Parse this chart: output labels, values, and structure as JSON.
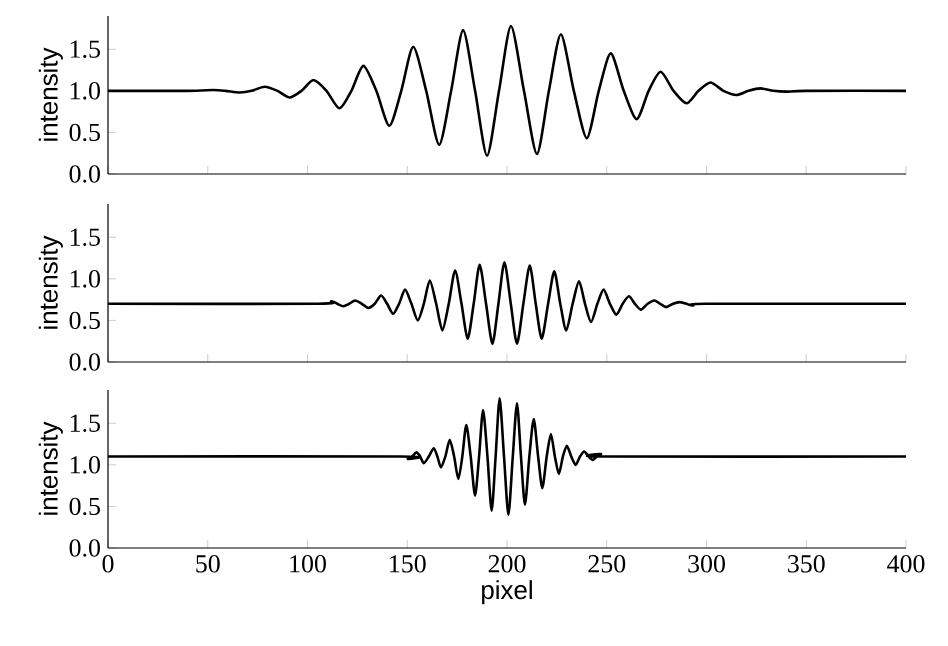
{
  "chart_data": [
    {
      "type": "line",
      "ylabel": "intensity",
      "xlim": [
        0,
        400
      ],
      "ylim": [
        0,
        1.9
      ],
      "tick_labels": "y",
      "xticks": [
        0,
        50,
        100,
        150,
        200,
        250,
        300,
        350,
        400
      ],
      "yticks": [
        {
          "value": 0,
          "label": "0.0"
        },
        {
          "value": 0.5,
          "label": "0.5"
        },
        {
          "value": 1,
          "label": "1.0"
        },
        {
          "value": 1.5,
          "label": "1.5"
        }
      ],
      "series": [
        {
          "color": "#000000",
          "x": [
            0,
            40,
            52.8,
            59,
            66,
            72,
            78.5,
            85,
            91,
            97,
            103,
            109.5,
            116,
            122,
            128,
            134.5,
            141,
            147,
            153,
            159.5,
            166,
            172,
            178,
            184,
            190,
            196,
            202,
            208.5,
            215,
            221,
            227,
            233.5,
            240,
            246,
            252,
            258.5,
            265,
            271,
            277,
            283.5,
            290,
            296,
            302,
            308.5,
            315,
            321,
            327,
            333.5,
            340,
            350,
            400
          ],
          "values": [
            1.0,
            1.0,
            1.01,
            1.0,
            0.98,
            1.0,
            1.05,
            1.0,
            0.92,
            1.0,
            1.13,
            1.0,
            0.79,
            1.0,
            1.3,
            1.0,
            0.58,
            1.0,
            1.53,
            1.0,
            0.35,
            1.0,
            1.73,
            1.0,
            0.22,
            1.0,
            1.78,
            1.0,
            0.24,
            1.0,
            1.68,
            1.0,
            0.43,
            1.0,
            1.45,
            1.0,
            0.66,
            1.0,
            1.23,
            1.0,
            0.85,
            1.0,
            1.1,
            1.0,
            0.95,
            1.0,
            1.03,
            1.0,
            0.99,
            1.0,
            1.0
          ]
        }
      ]
    },
    {
      "type": "line",
      "ylabel": "intensity",
      "xlim": [
        0,
        400
      ],
      "ylim": [
        0,
        1.9
      ],
      "tick_labels": "y",
      "xticks": [
        0,
        50,
        100,
        150,
        200,
        250,
        300,
        350,
        400
      ],
      "yticks": [
        {
          "value": 0,
          "label": "0.0"
        },
        {
          "value": 0.5,
          "label": "0.5"
        },
        {
          "value": 1,
          "label": "1.0"
        },
        {
          "value": 1.5,
          "label": "1.5"
        }
      ],
      "series": [
        {
          "color": "#000000",
          "x": [
            0,
            105,
            111.9,
            114.9,
            117.9,
            120.9,
            123.9,
            127.2,
            130.5,
            133.7,
            136.9,
            139.9,
            142.9,
            145.9,
            148.9,
            152.1,
            155.3,
            158.3,
            161.3,
            164.5,
            167.6,
            170.8,
            174,
            177.2,
            180.3,
            183.3,
            186.3,
            189.5,
            192.7,
            195.7,
            198.7,
            201.9,
            205,
            208.2,
            211.4,
            214.4,
            217.4,
            220.6,
            223.7,
            226.7,
            229.7,
            232.9,
            236.1,
            239.1,
            242.1,
            245.3,
            248.4,
            251.6,
            254.8,
            258,
            261.1,
            264.1,
            267.1,
            270.5,
            273.8,
            276.8,
            279.8,
            283.2,
            286.5,
            289.9,
            293.2,
            300,
            400
          ],
          "values": [
            0.7,
            0.7,
            0.73,
            0.7,
            0.67,
            0.7,
            0.74,
            0.7,
            0.65,
            0.7,
            0.8,
            0.7,
            0.58,
            0.7,
            0.87,
            0.7,
            0.5,
            0.7,
            0.98,
            0.7,
            0.38,
            0.7,
            1.1,
            0.7,
            0.28,
            0.7,
            1.17,
            0.7,
            0.22,
            0.7,
            1.2,
            0.7,
            0.22,
            0.7,
            1.16,
            0.7,
            0.28,
            0.7,
            1.09,
            0.7,
            0.38,
            0.7,
            0.97,
            0.7,
            0.48,
            0.7,
            0.87,
            0.7,
            0.57,
            0.7,
            0.79,
            0.7,
            0.63,
            0.7,
            0.74,
            0.7,
            0.66,
            0.7,
            0.72,
            0.7,
            0.68,
            0.7,
            0.7
          ]
        }
      ]
    },
    {
      "type": "line",
      "xlabel": "pixel",
      "ylabel": "intensity",
      "xlim": [
        0,
        400
      ],
      "ylim": [
        0,
        1.9
      ],
      "xticks": [
        0,
        50,
        100,
        150,
        200,
        250,
        300,
        350,
        400
      ],
      "yticks": [
        {
          "value": 0,
          "label": "0.0"
        },
        {
          "value": 0.5,
          "label": "0.5"
        },
        {
          "value": 1,
          "label": "1.0"
        },
        {
          "value": 1.5,
          "label": "1.5"
        }
      ],
      "series": [
        {
          "color": "#000000",
          "x": [
            0,
            147,
            150.3,
            152.5,
            154.6,
            156.5,
            158.3,
            160.8,
            163.3,
            165.1,
            166.9,
            169.1,
            171.3,
            173.5,
            175.6,
            177.6,
            179.6,
            181.8,
            184,
            186,
            188,
            190.2,
            192.3,
            194.3,
            196.3,
            198.5,
            200.7,
            202.9,
            205,
            207,
            209,
            211.2,
            213.4,
            215.6,
            217.7,
            219.9,
            222,
            224,
            226,
            228,
            230,
            232.2,
            234.4,
            236.6,
            238.7,
            240.9,
            243,
            245,
            247.1,
            249,
            400
          ],
          "values": [
            1.1,
            1.1,
            1.07,
            1.1,
            1.15,
            1.1,
            1.02,
            1.1,
            1.2,
            1.1,
            0.97,
            1.1,
            1.3,
            1.1,
            0.83,
            1.1,
            1.48,
            1.1,
            0.63,
            1.1,
            1.66,
            1.1,
            0.45,
            1.1,
            1.8,
            1.1,
            0.4,
            1.1,
            1.74,
            1.1,
            0.52,
            1.1,
            1.55,
            1.1,
            0.72,
            1.1,
            1.37,
            1.1,
            0.89,
            1.1,
            1.23,
            1.1,
            1.0,
            1.1,
            1.16,
            1.1,
            1.06,
            1.1,
            1.13,
            1.1,
            1.1
          ]
        }
      ]
    }
  ]
}
